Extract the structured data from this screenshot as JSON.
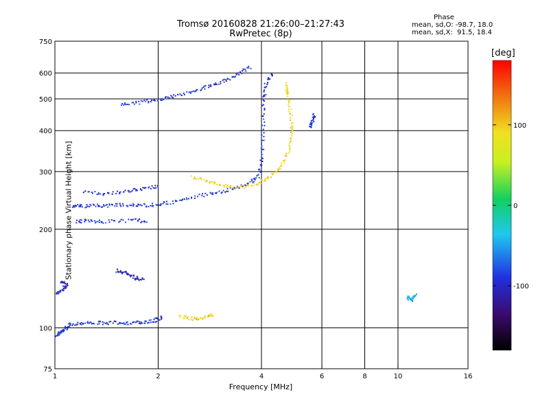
{
  "header": {
    "title": "Tromsø 20160828 21:26:00–21:27:43",
    "subtitle": "RwPretec (8p)"
  },
  "phase_stats": {
    "heading": "Phase",
    "line_o": "mean, sd,O: -98.7, 18.0",
    "line_x": "mean, sd,X:  91.5, 18.4"
  },
  "colorbar": {
    "unit": "[deg]",
    "ticks": [
      "100",
      "0",
      "-100"
    ],
    "tick_values": [
      100,
      0,
      -100
    ],
    "range": [
      -180,
      180
    ]
  },
  "chart_data": {
    "type": "scatter",
    "xlabel": "Frequency [MHz]",
    "ylabel": "Stationary phase Virtual Height [km]",
    "x_scale": "log",
    "y_scale": "log",
    "xlim": [
      1,
      16
    ],
    "ylim": [
      75,
      750
    ],
    "x_ticks": [
      1,
      2,
      4,
      6,
      8,
      10,
      16
    ],
    "x_tick_labels": [
      "1",
      "2",
      "4",
      "6",
      "8",
      "10",
      "16"
    ],
    "y_ticks": [
      75,
      100,
      200,
      300,
      400,
      500,
      600,
      750
    ],
    "y_tick_labels": [
      "75",
      "100",
      "200",
      "300",
      "400",
      "500",
      "600",
      "750"
    ],
    "grid": true,
    "colors": {
      "o_mode": "#2a3bd6",
      "x_mode": "#f0c020",
      "low_violet": "#5a2aa0",
      "cyan": "#20c8e0"
    },
    "traces": [
      {
        "mode": "O",
        "phase": -100,
        "points": [
          [
            1.0,
            95
          ],
          [
            1.03,
            97
          ],
          [
            1.06,
            99
          ],
          [
            1.1,
            103
          ],
          [
            1.2,
            104
          ],
          [
            1.35,
            104
          ],
          [
            1.5,
            104
          ],
          [
            1.65,
            104
          ],
          [
            1.8,
            104
          ],
          [
            1.95,
            106
          ],
          [
            2.05,
            108
          ]
        ]
      },
      {
        "mode": "O",
        "phase": -110,
        "points": [
          [
            1.01,
            128
          ],
          [
            1.05,
            132
          ],
          [
            1.08,
            136
          ],
          [
            1.03,
            140
          ]
        ]
      },
      {
        "mode": "O",
        "phase": -110,
        "points": [
          [
            1.5,
            150
          ],
          [
            1.6,
            148
          ],
          [
            1.7,
            143
          ],
          [
            1.8,
            141
          ]
        ]
      },
      {
        "mode": "O",
        "phase": -100,
        "points": [
          [
            1.15,
            212
          ],
          [
            1.25,
            213
          ],
          [
            1.4,
            212
          ],
          [
            1.7,
            214
          ],
          [
            1.85,
            212
          ]
        ]
      },
      {
        "mode": "O",
        "phase": -100,
        "points": [
          [
            1.12,
            237
          ],
          [
            1.2,
            236
          ],
          [
            1.35,
            237
          ],
          [
            1.5,
            238
          ],
          [
            1.7,
            238
          ],
          [
            1.9,
            238
          ],
          [
            2.1,
            241
          ],
          [
            2.4,
            248
          ],
          [
            2.8,
            258
          ],
          [
            3.2,
            265
          ],
          [
            3.6,
            275
          ],
          [
            3.9,
            290
          ],
          [
            4.0,
            330
          ],
          [
            4.02,
            400
          ],
          [
            4.05,
            500
          ],
          [
            4.1,
            560
          ],
          [
            4.3,
            600
          ]
        ]
      },
      {
        "mode": "O",
        "phase": -105,
        "points": [
          [
            1.2,
            260
          ],
          [
            1.4,
            258
          ],
          [
            1.6,
            262
          ],
          [
            1.8,
            268
          ],
          [
            2.0,
            272
          ]
        ]
      },
      {
        "mode": "O",
        "phase": -100,
        "points": [
          [
            1.55,
            480
          ],
          [
            1.75,
            490
          ],
          [
            2.0,
            500
          ],
          [
            2.2,
            510
          ],
          [
            2.5,
            530
          ],
          [
            2.8,
            550
          ],
          [
            3.1,
            570
          ],
          [
            3.4,
            595
          ],
          [
            3.7,
            630
          ]
        ]
      },
      {
        "mode": "X",
        "phase": 100,
        "points": [
          [
            2.3,
            109
          ],
          [
            2.5,
            107
          ],
          [
            2.7,
            108
          ],
          [
            2.9,
            110
          ]
        ]
      },
      {
        "mode": "X",
        "phase": 100,
        "points": [
          [
            2.5,
            290
          ],
          [
            2.8,
            280
          ],
          [
            3.1,
            272
          ],
          [
            3.5,
            270
          ],
          [
            3.9,
            278
          ],
          [
            4.2,
            290
          ],
          [
            4.5,
            310
          ],
          [
            4.8,
            350
          ],
          [
            4.9,
            400
          ],
          [
            4.85,
            450
          ],
          [
            4.75,
            520
          ],
          [
            4.7,
            560
          ]
        ]
      },
      {
        "mode": "O",
        "phase": -100,
        "points": [
          [
            5.5,
            410
          ],
          [
            5.6,
            430
          ],
          [
            5.7,
            450
          ]
        ]
      },
      {
        "mode": "O",
        "phase": -50,
        "points": [
          [
            10.6,
            125
          ],
          [
            10.9,
            122
          ],
          [
            11.2,
            127
          ]
        ]
      }
    ]
  }
}
